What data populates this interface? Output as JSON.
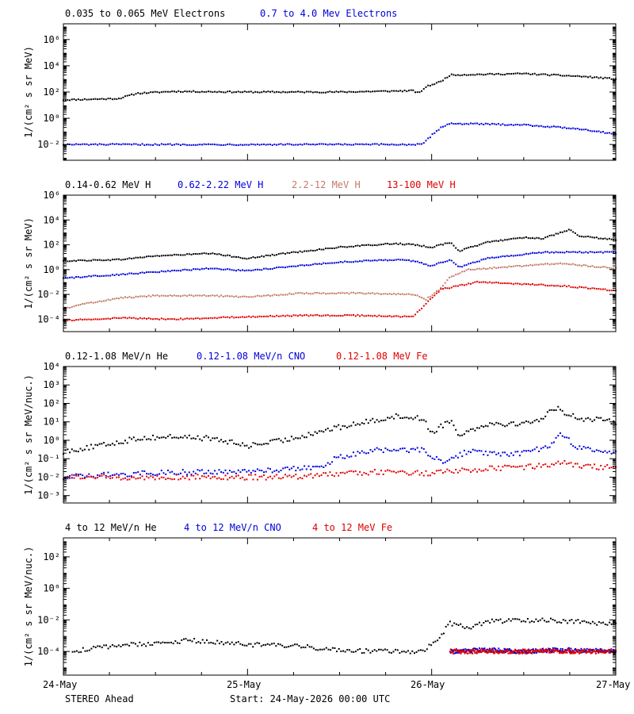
{
  "colors": {
    "black": "#000000",
    "blue": "#0000dd",
    "tan": "#c47a66",
    "red": "#e00000"
  },
  "footer": {
    "x_ticks": [
      "24-May",
      "25-May",
      "26-May",
      "27-May"
    ],
    "spacecraft": "STEREO Ahead",
    "start_label": "Start: 24-May-2026 00:00 UTC"
  },
  "chart_data": [
    {
      "type": "scatter",
      "ylabel": "1/(cm² s sr MeV)",
      "yscale": "log",
      "ylim_exp": [
        -3.2,
        7.2
      ],
      "y_tick_exponents": [
        -2,
        0,
        2,
        4,
        6
      ],
      "x_domain_days": [
        0,
        3
      ],
      "series": [
        {
          "name": "0.035 to 0.065 MeV Electrons",
          "color": "black",
          "points": [
            [
              0,
              1.4
            ],
            [
              0.3,
              1.5
            ],
            [
              0.4,
              1.9
            ],
            [
              0.6,
              2.05
            ],
            [
              1.0,
              2.0
            ],
            [
              1.5,
              2.0
            ],
            [
              1.9,
              2.1
            ],
            [
              1.93,
              1.9
            ],
            [
              1.97,
              2.4
            ],
            [
              2.05,
              2.8
            ],
            [
              2.1,
              3.3
            ],
            [
              2.5,
              3.4
            ],
            [
              2.8,
              3.2
            ],
            [
              3.0,
              3.0
            ]
          ]
        },
        {
          "name": "0.7 to 4.0 Mev Electrons",
          "color": "blue",
          "points": [
            [
              0,
              -2.0
            ],
            [
              0.5,
              -2.0
            ],
            [
              1.0,
              -2.0
            ],
            [
              1.5,
              -2.0
            ],
            [
              1.95,
              -2.0
            ],
            [
              2.0,
              -1.3
            ],
            [
              2.05,
              -0.7
            ],
            [
              2.1,
              -0.4
            ],
            [
              2.5,
              -0.5
            ],
            [
              2.8,
              -0.8
            ],
            [
              3.0,
              -1.2
            ]
          ]
        }
      ]
    },
    {
      "type": "scatter",
      "ylabel": "1/(cm² s sr MeV)",
      "yscale": "log",
      "ylim_exp": [
        -5.0,
        6.0
      ],
      "y_tick_exponents": [
        -4,
        -2,
        0,
        2,
        4,
        6
      ],
      "x_domain_days": [
        0,
        3
      ],
      "series": [
        {
          "name": "0.14-0.62 MeV H",
          "color": "black",
          "points": [
            [
              0,
              0.7
            ],
            [
              0.3,
              0.8
            ],
            [
              0.5,
              1.1
            ],
            [
              0.8,
              1.3
            ],
            [
              1.0,
              0.9
            ],
            [
              1.2,
              1.3
            ],
            [
              1.5,
              1.8
            ],
            [
              1.8,
              2.1
            ],
            [
              1.9,
              2.0
            ],
            [
              2.0,
              1.8
            ],
            [
              2.1,
              2.2
            ],
            [
              2.15,
              1.5
            ],
            [
              2.3,
              2.2
            ],
            [
              2.5,
              2.6
            ],
            [
              2.6,
              2.5
            ],
            [
              2.75,
              3.2
            ],
            [
              2.8,
              2.7
            ],
            [
              3.0,
              2.4
            ]
          ]
        },
        {
          "name": "0.62-2.22 MeV H",
          "color": "blue",
          "points": [
            [
              0,
              -0.7
            ],
            [
              0.3,
              -0.4
            ],
            [
              0.5,
              -0.2
            ],
            [
              0.8,
              0.1
            ],
            [
              1.0,
              -0.1
            ],
            [
              1.2,
              0.2
            ],
            [
              1.5,
              0.6
            ],
            [
              1.8,
              0.8
            ],
            [
              1.9,
              0.7
            ],
            [
              2.0,
              0.3
            ],
            [
              2.1,
              0.8
            ],
            [
              2.15,
              0.2
            ],
            [
              2.3,
              0.9
            ],
            [
              2.6,
              1.4
            ],
            [
              3.0,
              1.4
            ]
          ]
        },
        {
          "name": "2.2-12 MeV H",
          "color": "tan",
          "points": [
            [
              0,
              -3.2
            ],
            [
              0.1,
              -2.8
            ],
            [
              0.3,
              -2.3
            ],
            [
              0.5,
              -2.1
            ],
            [
              0.8,
              -2.1
            ],
            [
              1.0,
              -2.2
            ],
            [
              1.3,
              -1.9
            ],
            [
              1.6,
              -1.9
            ],
            [
              1.9,
              -2.0
            ],
            [
              1.97,
              -2.4
            ],
            [
              2.05,
              -1.5
            ],
            [
              2.1,
              -0.6
            ],
            [
              2.2,
              0.0
            ],
            [
              2.3,
              0.1
            ],
            [
              2.5,
              0.3
            ],
            [
              2.7,
              0.5
            ],
            [
              3.0,
              0.1
            ]
          ]
        },
        {
          "name": "13-100 MeV H",
          "color": "red",
          "points": [
            [
              0,
              -4.1
            ],
            [
              0.3,
              -3.9
            ],
            [
              0.6,
              -4.0
            ],
            [
              1.0,
              -3.8
            ],
            [
              1.3,
              -3.7
            ],
            [
              1.6,
              -3.7
            ],
            [
              1.9,
              -3.8
            ],
            [
              1.98,
              -2.6
            ],
            [
              2.05,
              -1.6
            ],
            [
              2.15,
              -1.3
            ],
            [
              2.25,
              -1.0
            ],
            [
              2.4,
              -1.1
            ],
            [
              2.7,
              -1.3
            ],
            [
              3.0,
              -1.7
            ]
          ]
        }
      ]
    },
    {
      "type": "scatter",
      "ylabel": "1/(cm² s sr MeV/nuc.)",
      "yscale": "log",
      "ylim_exp": [
        -3.4,
        4.0
      ],
      "y_tick_exponents": [
        -3,
        -2,
        -1,
        0,
        1,
        2,
        3,
        4
      ],
      "x_domain_days": [
        0,
        3
      ],
      "series": [
        {
          "name": "0.12-1.08 MeV/n He",
          "color": "black",
          "points": [
            [
              0,
              -0.6
            ],
            [
              0.2,
              -0.3
            ],
            [
              0.4,
              0.1
            ],
            [
              0.6,
              0.2
            ],
            [
              0.8,
              0.1
            ],
            [
              1.0,
              -0.3
            ],
            [
              1.2,
              0.0
            ],
            [
              1.4,
              0.5
            ],
            [
              1.6,
              0.9
            ],
            [
              1.8,
              1.3
            ],
            [
              1.95,
              1.2
            ],
            [
              2.0,
              0.4
            ],
            [
              2.1,
              1.1
            ],
            [
              2.15,
              0.3
            ],
            [
              2.3,
              0.9
            ],
            [
              2.5,
              0.9
            ],
            [
              2.6,
              1.2
            ],
            [
              2.68,
              1.8
            ],
            [
              2.72,
              1.5
            ],
            [
              2.8,
              1.2
            ],
            [
              3.0,
              1.0
            ]
          ]
        },
        {
          "name": "0.12-1.08 MeV/n CNO",
          "color": "blue",
          "points": [
            [
              0,
              -2.0
            ],
            [
              0.4,
              -1.8
            ],
            [
              0.8,
              -1.7
            ],
            [
              1.2,
              -1.6
            ],
            [
              1.4,
              -1.4
            ],
            [
              1.5,
              -0.9
            ],
            [
              1.7,
              -0.5
            ],
            [
              1.8,
              -0.6
            ],
            [
              1.95,
              -0.5
            ],
            [
              2.05,
              -1.2
            ],
            [
              2.2,
              -0.6
            ],
            [
              2.4,
              -0.8
            ],
            [
              2.55,
              -0.6
            ],
            [
              2.65,
              -0.2
            ],
            [
              2.7,
              0.3
            ],
            [
              2.8,
              -0.4
            ],
            [
              3.0,
              -0.7
            ]
          ]
        },
        {
          "name": "0.12-1.08 MeV Fe",
          "color": "red",
          "points": [
            [
              0,
              -2.0
            ],
            [
              0.4,
              -2.0
            ],
            [
              0.8,
              -2.0
            ],
            [
              1.2,
              -2.0
            ],
            [
              1.5,
              -1.8
            ],
            [
              1.8,
              -1.7
            ],
            [
              2.0,
              -1.8
            ],
            [
              2.2,
              -1.6
            ],
            [
              2.4,
              -1.5
            ],
            [
              2.6,
              -1.4
            ],
            [
              2.7,
              -1.2
            ],
            [
              2.8,
              -1.4
            ],
            [
              3.0,
              -1.5
            ]
          ]
        }
      ]
    },
    {
      "type": "scatter",
      "ylabel": "1/(cm² s sr MeV/nuc.)",
      "yscale": "log",
      "ylim_exp": [
        -5.5,
        3.2
      ],
      "y_tick_exponents": [
        -4,
        -2,
        0,
        2
      ],
      "x_domain_days": [
        0,
        3
      ],
      "series": [
        {
          "name": "4 to 12 MeV/n He",
          "color": "black",
          "points": [
            [
              0.05,
              -4.0
            ],
            [
              0.3,
              -3.6
            ],
            [
              0.5,
              -3.5
            ],
            [
              0.7,
              -3.3
            ],
            [
              0.9,
              -3.5
            ],
            [
              1.1,
              -3.6
            ],
            [
              1.3,
              -3.7
            ],
            [
              1.5,
              -3.9
            ],
            [
              1.7,
              -4.0
            ],
            [
              1.95,
              -4.0
            ],
            [
              2.05,
              -3.0
            ],
            [
              2.1,
              -2.2
            ],
            [
              2.2,
              -2.5
            ],
            [
              2.3,
              -2.1
            ],
            [
              2.6,
              -2.0
            ],
            [
              2.8,
              -2.1
            ],
            [
              3.0,
              -2.3
            ]
          ]
        },
        {
          "name": "4 to 12 MeV/n CNO",
          "color": "blue",
          "points": [
            [
              2.1,
              -4.0
            ],
            [
              2.3,
              -3.9
            ],
            [
              2.5,
              -4.0
            ],
            [
              2.7,
              -3.9
            ],
            [
              3.0,
              -4.0
            ]
          ]
        },
        {
          "name": "4 to 12 MeV Fe",
          "color": "red",
          "points": [
            [
              2.1,
              -4.0
            ],
            [
              2.4,
              -4.0
            ],
            [
              2.7,
              -4.0
            ],
            [
              3.0,
              -4.0
            ]
          ]
        }
      ]
    }
  ]
}
